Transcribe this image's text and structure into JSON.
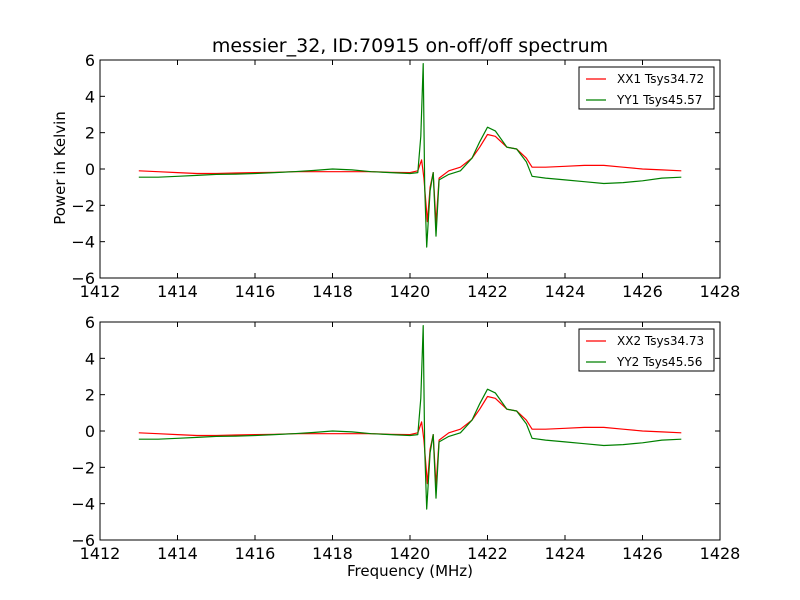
{
  "figure": {
    "title": "messier_32, ID:70915 on-off/off spectrum",
    "ylabel": "Power in Kelvin",
    "xlabel": "Frequency (MHz)"
  },
  "chart_data": [
    {
      "type": "line",
      "title": "messier_32, ID:70915 on-off/off spectrum",
      "xlabel": "",
      "ylabel": "Power in Kelvin",
      "xlim": [
        1412,
        1428
      ],
      "ylim": [
        -6,
        6
      ],
      "xticks": [
        1412,
        1414,
        1416,
        1418,
        1420,
        1422,
        1424,
        1426,
        1428
      ],
      "yticks": [
        -6,
        -4,
        -2,
        0,
        2,
        4,
        6
      ],
      "grid": false,
      "legend_position": "top-right",
      "series": [
        {
          "name": "XX1 Tsys34.72",
          "color": "#ff0000",
          "points": [
            [
              1413.0,
              -0.1
            ],
            [
              1413.5,
              -0.15
            ],
            [
              1414.0,
              -0.2
            ],
            [
              1414.5,
              -0.25
            ],
            [
              1415.0,
              -0.25
            ],
            [
              1415.5,
              -0.22
            ],
            [
              1416.0,
              -0.2
            ],
            [
              1416.5,
              -0.18
            ],
            [
              1417.0,
              -0.15
            ],
            [
              1417.5,
              -0.15
            ],
            [
              1418.0,
              -0.15
            ],
            [
              1418.5,
              -0.15
            ],
            [
              1419.0,
              -0.15
            ],
            [
              1419.5,
              -0.18
            ],
            [
              1420.0,
              -0.2
            ],
            [
              1420.2,
              -0.1
            ],
            [
              1420.3,
              0.5
            ],
            [
              1420.36,
              -0.5
            ],
            [
              1420.45,
              -2.9
            ],
            [
              1420.52,
              -1.0
            ],
            [
              1420.6,
              -0.2
            ],
            [
              1420.67,
              -3.0
            ],
            [
              1420.75,
              -0.5
            ],
            [
              1421.0,
              -0.1
            ],
            [
              1421.3,
              0.1
            ],
            [
              1421.6,
              0.6
            ],
            [
              1421.8,
              1.2
            ],
            [
              1422.0,
              1.9
            ],
            [
              1422.2,
              1.8
            ],
            [
              1422.5,
              1.2
            ],
            [
              1422.75,
              1.1
            ],
            [
              1423.0,
              0.6
            ],
            [
              1423.15,
              0.1
            ],
            [
              1423.5,
              0.1
            ],
            [
              1424.0,
              0.15
            ],
            [
              1424.5,
              0.2
            ],
            [
              1425.0,
              0.2
            ],
            [
              1425.5,
              0.1
            ],
            [
              1426.0,
              0.0
            ],
            [
              1426.5,
              -0.05
            ],
            [
              1427.0,
              -0.1
            ]
          ]
        },
        {
          "name": "YY1 Tsys45.57",
          "color": "#008000",
          "points": [
            [
              1413.0,
              -0.45
            ],
            [
              1413.5,
              -0.45
            ],
            [
              1414.0,
              -0.4
            ],
            [
              1414.5,
              -0.35
            ],
            [
              1415.0,
              -0.3
            ],
            [
              1415.5,
              -0.28
            ],
            [
              1416.0,
              -0.25
            ],
            [
              1416.5,
              -0.2
            ],
            [
              1417.0,
              -0.15
            ],
            [
              1417.5,
              -0.08
            ],
            [
              1418.0,
              0.0
            ],
            [
              1418.5,
              -0.05
            ],
            [
              1419.0,
              -0.15
            ],
            [
              1419.5,
              -0.2
            ],
            [
              1420.0,
              -0.25
            ],
            [
              1420.2,
              -0.2
            ],
            [
              1420.28,
              1.8
            ],
            [
              1420.34,
              5.8
            ],
            [
              1420.38,
              -1.0
            ],
            [
              1420.43,
              -4.3
            ],
            [
              1420.52,
              -1.2
            ],
            [
              1420.6,
              -0.2
            ],
            [
              1420.67,
              -3.7
            ],
            [
              1420.75,
              -0.6
            ],
            [
              1421.0,
              -0.3
            ],
            [
              1421.3,
              -0.1
            ],
            [
              1421.6,
              0.6
            ],
            [
              1421.8,
              1.5
            ],
            [
              1422.0,
              2.3
            ],
            [
              1422.2,
              2.1
            ],
            [
              1422.5,
              1.2
            ],
            [
              1422.75,
              1.1
            ],
            [
              1423.0,
              0.4
            ],
            [
              1423.15,
              -0.4
            ],
            [
              1423.5,
              -0.5
            ],
            [
              1424.0,
              -0.6
            ],
            [
              1424.5,
              -0.7
            ],
            [
              1425.0,
              -0.8
            ],
            [
              1425.5,
              -0.75
            ],
            [
              1426.0,
              -0.65
            ],
            [
              1426.5,
              -0.5
            ],
            [
              1427.0,
              -0.45
            ]
          ]
        }
      ]
    },
    {
      "type": "line",
      "title": "",
      "xlabel": "Frequency (MHz)",
      "ylabel": "",
      "xlim": [
        1412,
        1428
      ],
      "ylim": [
        -6,
        6
      ],
      "xticks": [
        1412,
        1414,
        1416,
        1418,
        1420,
        1422,
        1424,
        1426,
        1428
      ],
      "yticks": [
        -6,
        -4,
        -2,
        0,
        2,
        4,
        6
      ],
      "grid": false,
      "legend_position": "top-right",
      "series": [
        {
          "name": "XX2 Tsys34.73",
          "color": "#ff0000",
          "points": [
            [
              1413.0,
              -0.1
            ],
            [
              1413.5,
              -0.15
            ],
            [
              1414.0,
              -0.2
            ],
            [
              1414.5,
              -0.25
            ],
            [
              1415.0,
              -0.25
            ],
            [
              1415.5,
              -0.22
            ],
            [
              1416.0,
              -0.2
            ],
            [
              1416.5,
              -0.18
            ],
            [
              1417.0,
              -0.15
            ],
            [
              1417.5,
              -0.15
            ],
            [
              1418.0,
              -0.15
            ],
            [
              1418.5,
              -0.15
            ],
            [
              1419.0,
              -0.15
            ],
            [
              1419.5,
              -0.18
            ],
            [
              1420.0,
              -0.2
            ],
            [
              1420.2,
              -0.1
            ],
            [
              1420.3,
              0.5
            ],
            [
              1420.36,
              -0.5
            ],
            [
              1420.45,
              -2.9
            ],
            [
              1420.52,
              -1.0
            ],
            [
              1420.6,
              -0.2
            ],
            [
              1420.67,
              -3.0
            ],
            [
              1420.75,
              -0.5
            ],
            [
              1421.0,
              -0.1
            ],
            [
              1421.3,
              0.1
            ],
            [
              1421.6,
              0.6
            ],
            [
              1421.8,
              1.2
            ],
            [
              1422.0,
              1.9
            ],
            [
              1422.2,
              1.8
            ],
            [
              1422.5,
              1.2
            ],
            [
              1422.75,
              1.1
            ],
            [
              1423.0,
              0.6
            ],
            [
              1423.15,
              0.1
            ],
            [
              1423.5,
              0.1
            ],
            [
              1424.0,
              0.15
            ],
            [
              1424.5,
              0.2
            ],
            [
              1425.0,
              0.2
            ],
            [
              1425.5,
              0.1
            ],
            [
              1426.0,
              0.0
            ],
            [
              1426.5,
              -0.05
            ],
            [
              1427.0,
              -0.1
            ]
          ]
        },
        {
          "name": "YY2 Tsys45.56",
          "color": "#008000",
          "points": [
            [
              1413.0,
              -0.45
            ],
            [
              1413.5,
              -0.45
            ],
            [
              1414.0,
              -0.4
            ],
            [
              1414.5,
              -0.35
            ],
            [
              1415.0,
              -0.3
            ],
            [
              1415.5,
              -0.28
            ],
            [
              1416.0,
              -0.25
            ],
            [
              1416.5,
              -0.2
            ],
            [
              1417.0,
              -0.15
            ],
            [
              1417.5,
              -0.08
            ],
            [
              1418.0,
              0.0
            ],
            [
              1418.5,
              -0.05
            ],
            [
              1419.0,
              -0.15
            ],
            [
              1419.5,
              -0.2
            ],
            [
              1420.0,
              -0.25
            ],
            [
              1420.2,
              -0.2
            ],
            [
              1420.28,
              1.8
            ],
            [
              1420.34,
              5.8
            ],
            [
              1420.38,
              -1.0
            ],
            [
              1420.43,
              -4.3
            ],
            [
              1420.52,
              -1.2
            ],
            [
              1420.6,
              -0.2
            ],
            [
              1420.67,
              -3.7
            ],
            [
              1420.75,
              -0.6
            ],
            [
              1421.0,
              -0.3
            ],
            [
              1421.3,
              -0.1
            ],
            [
              1421.6,
              0.6
            ],
            [
              1421.8,
              1.5
            ],
            [
              1422.0,
              2.3
            ],
            [
              1422.2,
              2.1
            ],
            [
              1422.5,
              1.2
            ],
            [
              1422.75,
              1.1
            ],
            [
              1423.0,
              0.4
            ],
            [
              1423.15,
              -0.4
            ],
            [
              1423.5,
              -0.5
            ],
            [
              1424.0,
              -0.6
            ],
            [
              1424.5,
              -0.7
            ],
            [
              1425.0,
              -0.8
            ],
            [
              1425.5,
              -0.75
            ],
            [
              1426.0,
              -0.65
            ],
            [
              1426.5,
              -0.5
            ],
            [
              1427.0,
              -0.45
            ]
          ]
        }
      ]
    }
  ]
}
